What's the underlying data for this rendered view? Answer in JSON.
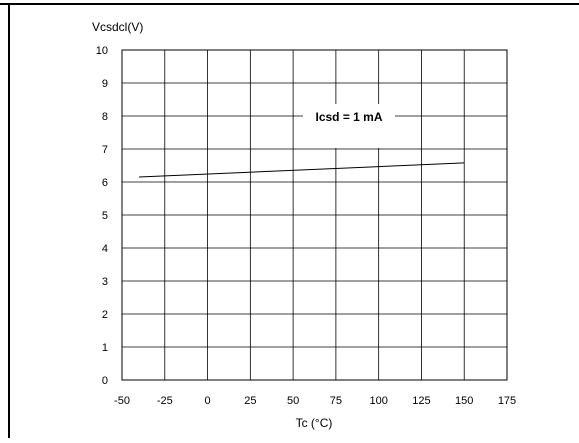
{
  "chart_data": {
    "type": "line",
    "title": "",
    "ylabel": "Vcsdcl(V)",
    "xlabel": "Tc (°C)",
    "xlim": [
      -50,
      175
    ],
    "ylim": [
      0,
      10
    ],
    "x_ticks": [
      "-50",
      "-25",
      "0",
      "25",
      "50",
      "75",
      "100",
      "125",
      "150",
      "175"
    ],
    "y_ticks": [
      "0",
      "1",
      "2",
      "3",
      "4",
      "5",
      "6",
      "7",
      "8",
      "9",
      "10"
    ],
    "grid": true,
    "series": [
      {
        "x": [
          -40,
          150
        ],
        "y": [
          6.15,
          6.58
        ],
        "color": "#000000"
      }
    ],
    "annotation": "Icsd = 1 mA"
  }
}
